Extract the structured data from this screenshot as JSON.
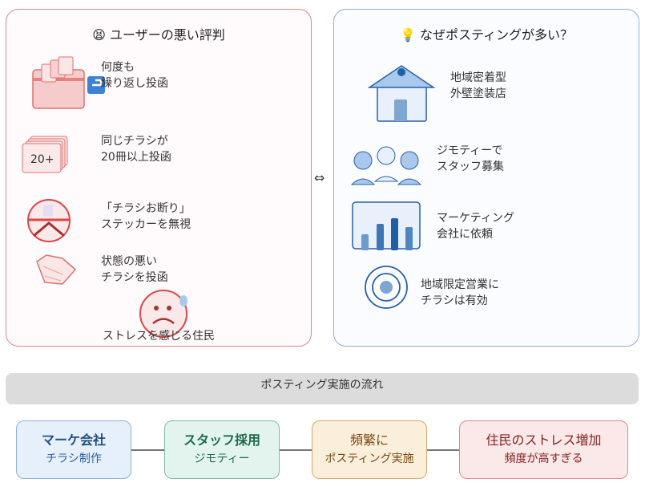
{
  "left_panel": {
    "title_icon": "distressed-face-emoji",
    "title": "ユーザーの悪い評判",
    "items": [
      {
        "icon": "repeat-mailbox-icon",
        "text": "何度も\n繰り返し投函"
      },
      {
        "icon": "flyer-stack-icon",
        "badge": "20+",
        "text": "同じチラシが\n20冊以上投函"
      },
      {
        "icon": "no-flyer-sign-icon",
        "text": "「チラシお断り」\nステッカーを無視"
      },
      {
        "icon": "crumpled-flyer-icon",
        "text": "状態の悪い\nチラシを投函"
      }
    ],
    "resident_label": "ストレスを感じる住民"
  },
  "connector_symbol": "⇔",
  "right_panel": {
    "title_icon": "lightbulb-emoji",
    "title": "なぜポスティングが多い？",
    "items": [
      {
        "icon": "house-icon",
        "text": "地域密着型\n外壁塗装店"
      },
      {
        "icon": "people-icon",
        "text": "ジモティーで\nスタッフ募集"
      },
      {
        "icon": "bar-chart-icon",
        "text": "マーケティング\n会社に依頼"
      },
      {
        "icon": "target-icon",
        "text": "地域限定営業に\nチラシは有効"
      }
    ]
  },
  "flow": {
    "title": "ポスティング実施の流れ",
    "steps": [
      {
        "title": "マーケ会社",
        "sub": "チラシ制作",
        "color": "#1f4e85",
        "bg": "#e6f0fb",
        "border": "#8fb0d6"
      },
      {
        "title": "スタッフ採用",
        "sub": "ジモティー",
        "color": "#1e6b4f",
        "bg": "#e3f4ee",
        "border": "#7fb8a0"
      },
      {
        "title": "頻繁に",
        "sub": "ポスティング実施",
        "color": "#7a4a10",
        "bg": "#fbeedb",
        "border": "#d4aa70"
      },
      {
        "title": "住民のストレス増加",
        "sub": "頻度が高すぎる",
        "color": "#8a2020",
        "bg": "#fbe9e9",
        "border": "#d98a8a"
      }
    ]
  }
}
